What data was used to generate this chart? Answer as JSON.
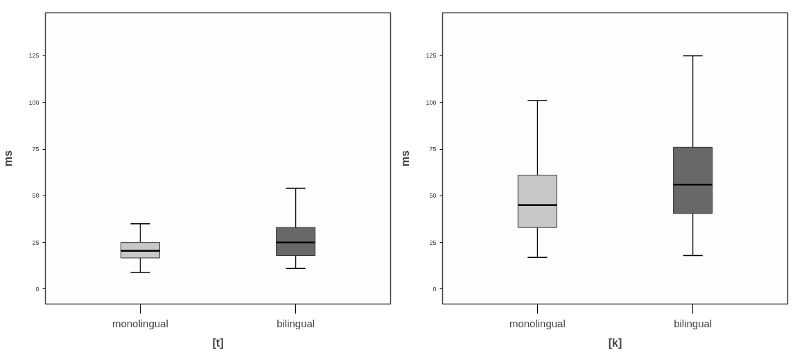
{
  "chart_data": [
    {
      "type": "box",
      "xlabel": "[t]",
      "ylabel": "ms",
      "categories": [
        "monolingual",
        "bilingual"
      ],
      "colors": [
        "#c8c8c8",
        "#686868"
      ],
      "ylim": [
        -8,
        148
      ],
      "yticks": [
        0,
        25,
        50,
        75,
        100,
        125
      ],
      "grid": false,
      "boxes": [
        {
          "low": 9,
          "q1": 16.7,
          "median": 20.5,
          "q3": 25,
          "high": 35
        },
        {
          "low": 11,
          "q1": 18,
          "median": 25,
          "q3": 33,
          "high": 54
        }
      ]
    },
    {
      "type": "box",
      "xlabel": "[k]",
      "ylabel": "ms",
      "categories": [
        "monolingual",
        "bilingual"
      ],
      "colors": [
        "#c8c8c8",
        "#686868"
      ],
      "ylim": [
        -8,
        148
      ],
      "yticks": [
        0,
        25,
        50,
        75,
        100,
        125
      ],
      "grid": false,
      "boxes": [
        {
          "low": 17,
          "q1": 33,
          "median": 45,
          "q3": 61,
          "high": 101
        },
        {
          "low": 18,
          "q1": 40.5,
          "median": 56,
          "q3": 76,
          "high": 125
        }
      ]
    }
  ]
}
